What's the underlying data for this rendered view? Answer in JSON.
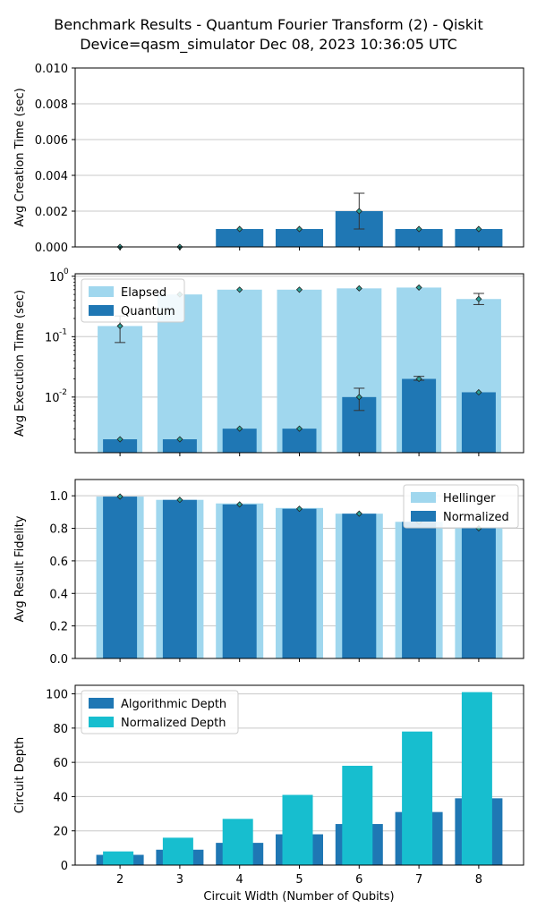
{
  "figure": {
    "title_line1": "Benchmark Results - Quantum Fourier Transform (2) - Qiskit",
    "title_line2": "Device=qasm_simulator  Dec 08, 2023 10:36:05 UTC",
    "xlabel": "Circuit Width (Number of Qubits)"
  },
  "colors": {
    "dark_blue": "#1f77b4",
    "light_blue": "#a0d7ee",
    "cyan": "#17becf",
    "marker": "#2aa198",
    "grid": "#c8c8c8"
  },
  "chart_data": [
    {
      "type": "bar",
      "ylabel": "Avg Creation Time (sec)",
      "ylim": [
        0,
        0.01
      ],
      "yticks": [
        "0.000",
        "0.002",
        "0.004",
        "0.006",
        "0.008",
        "0.010"
      ],
      "categories": [
        2,
        3,
        4,
        5,
        6,
        7,
        8
      ],
      "series": [
        {
          "values": [
            0.0,
            0.0,
            0.001,
            0.001,
            0.002,
            0.001,
            0.001
          ],
          "error_low": [
            0.0,
            0.0,
            0.001,
            0.001,
            0.001,
            0.001,
            0.001
          ],
          "error_high": [
            0.0,
            0.0,
            0.001,
            0.001,
            0.003,
            0.001,
            0.001
          ]
        }
      ],
      "grid": true
    },
    {
      "type": "bar",
      "ylabel": "Avg Execution Time (sec)",
      "yscale": "log",
      "ylim": [
        0.0012,
        1.1
      ],
      "categories": [
        2,
        3,
        4,
        5,
        6,
        7,
        8
      ],
      "series": [
        {
          "name": "Elapsed",
          "values": [
            0.15,
            0.5,
            0.6,
            0.6,
            0.63,
            0.65,
            0.42
          ],
          "error_low": [
            0.08,
            0.5,
            0.6,
            0.6,
            0.63,
            0.65,
            0.34
          ],
          "error_high": [
            0.22,
            0.5,
            0.6,
            0.6,
            0.63,
            0.65,
            0.52
          ]
        },
        {
          "name": "Quantum",
          "values": [
            0.002,
            0.002,
            0.003,
            0.003,
            0.01,
            0.02,
            0.012
          ],
          "error_low": [
            0.002,
            0.002,
            0.003,
            0.003,
            0.006,
            0.019,
            0.012
          ],
          "error_high": [
            0.002,
            0.002,
            0.003,
            0.003,
            0.014,
            0.022,
            0.012
          ]
        }
      ],
      "legend": "upper-left",
      "grid": true
    },
    {
      "type": "bar",
      "ylabel": "Avg Result Fidelity",
      "ylim": [
        0,
        1.1
      ],
      "yticks": [
        "0.0",
        "0.2",
        "0.4",
        "0.6",
        "0.8",
        "1.0"
      ],
      "categories": [
        2,
        3,
        4,
        5,
        6,
        7,
        8
      ],
      "series": [
        {
          "name": "Hellinger",
          "values": [
            0.995,
            0.975,
            0.953,
            0.925,
            0.89,
            0.84,
            0.8
          ]
        },
        {
          "name": "Normalized",
          "values": [
            0.995,
            0.975,
            0.947,
            0.92,
            0.89,
            0.84,
            0.8
          ]
        }
      ],
      "legend": "upper-right",
      "grid": true
    },
    {
      "type": "bar",
      "ylabel": "Circuit Depth",
      "ylim": [
        0,
        105
      ],
      "yticks": [
        "0",
        "20",
        "40",
        "60",
        "80",
        "100"
      ],
      "categories": [
        2,
        3,
        4,
        5,
        6,
        7,
        8
      ],
      "series": [
        {
          "name": "Algorithmic Depth",
          "values": [
            6,
            9,
            13,
            18,
            24,
            31,
            39
          ]
        },
        {
          "name": "Normalized Depth",
          "values": [
            8,
            16,
            27,
            41,
            58,
            78,
            101
          ]
        }
      ],
      "legend": "upper-left",
      "grid": true
    }
  ]
}
